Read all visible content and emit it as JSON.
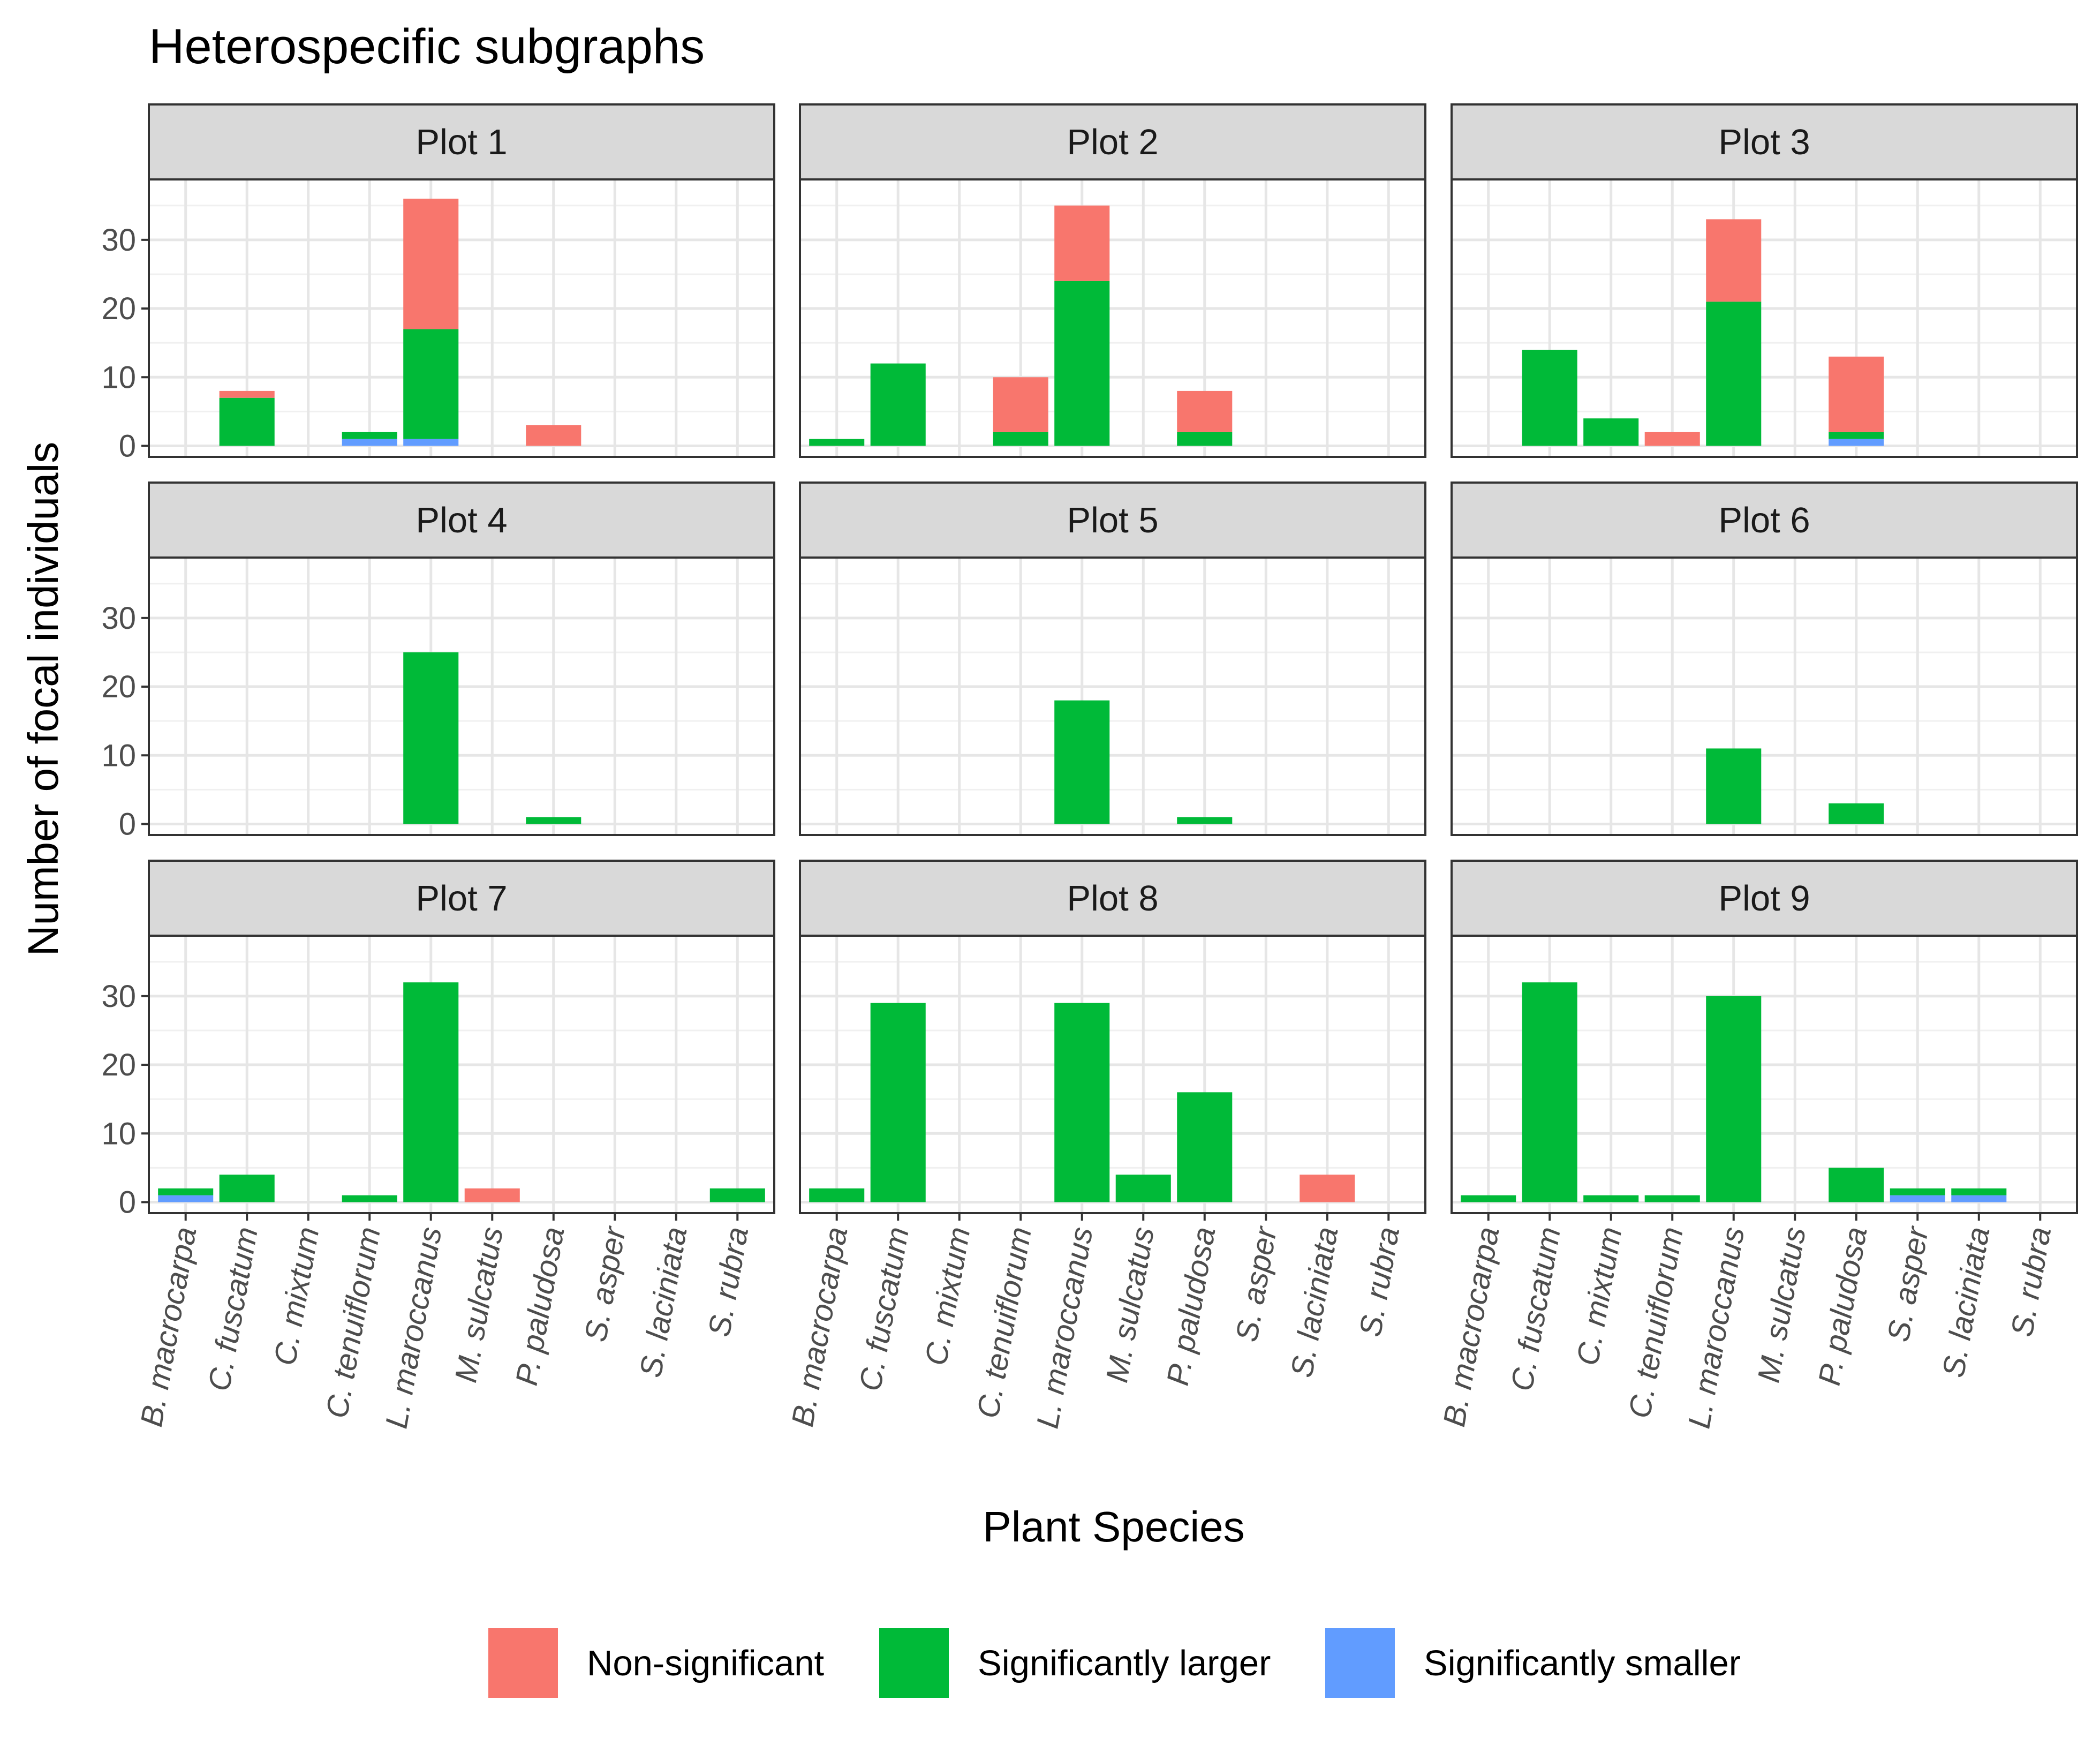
{
  "chart_data": {
    "type": "bar",
    "stacked": true,
    "title": "Heterospecific subgraphs",
    "xlabel": "Plant Species",
    "ylabel": "Number of focal individuals",
    "ylim": [
      0,
      36
    ],
    "yticks": [
      0,
      10,
      20,
      30
    ],
    "grid": true,
    "legend_position": "bottom",
    "categories": [
      "B. macrocarpa",
      "C. fuscatum",
      "C. mixtum",
      "C. tenuiflorum",
      "L. maroccanus",
      "M. sulcatus",
      "P. paludosa",
      "S. asper",
      "S. laciniata",
      "S. rubra"
    ],
    "series_names": [
      "Non-significant",
      "Significantly larger",
      "Significantly smaller"
    ],
    "colors": {
      "Non-significant": "#F8766D",
      "Significantly larger": "#00BA38",
      "Significantly smaller": "#619CFF"
    },
    "panels": [
      {
        "label": "Plot 1",
        "series": [
          {
            "name": "Non-significant",
            "values": [
              0,
              1,
              0,
              0,
              19,
              0,
              3,
              0,
              0,
              0
            ]
          },
          {
            "name": "Significantly larger",
            "values": [
              0,
              7,
              0,
              1,
              16,
              0,
              0,
              0,
              0,
              0
            ]
          },
          {
            "name": "Significantly smaller",
            "values": [
              0,
              0,
              0,
              1,
              1,
              0,
              0,
              0,
              0,
              0
            ]
          }
        ]
      },
      {
        "label": "Plot 2",
        "series": [
          {
            "name": "Non-significant",
            "values": [
              0,
              0,
              0,
              8,
              11,
              0,
              6,
              0,
              0,
              0
            ]
          },
          {
            "name": "Significantly larger",
            "values": [
              1,
              12,
              0,
              2,
              24,
              0,
              2,
              0,
              0,
              0
            ]
          },
          {
            "name": "Significantly smaller",
            "values": [
              0,
              0,
              0,
              0,
              0,
              0,
              0,
              0,
              0,
              0
            ]
          }
        ]
      },
      {
        "label": "Plot 3",
        "series": [
          {
            "name": "Non-significant",
            "values": [
              0,
              0,
              0,
              2,
              12,
              0,
              11,
              0,
              0,
              0
            ]
          },
          {
            "name": "Significantly larger",
            "values": [
              0,
              14,
              4,
              0,
              21,
              0,
              1,
              0,
              0,
              0
            ]
          },
          {
            "name": "Significantly smaller",
            "values": [
              0,
              0,
              0,
              0,
              0,
              0,
              1,
              0,
              0,
              0
            ]
          }
        ]
      },
      {
        "label": "Plot 4",
        "series": [
          {
            "name": "Non-significant",
            "values": [
              0,
              0,
              0,
              0,
              0,
              0,
              0,
              0,
              0,
              0
            ]
          },
          {
            "name": "Significantly larger",
            "values": [
              0,
              0,
              0,
              0,
              25,
              0,
              1,
              0,
              0,
              0
            ]
          },
          {
            "name": "Significantly smaller",
            "values": [
              0,
              0,
              0,
              0,
              0,
              0,
              0,
              0,
              0,
              0
            ]
          }
        ]
      },
      {
        "label": "Plot 5",
        "series": [
          {
            "name": "Non-significant",
            "values": [
              0,
              0,
              0,
              0,
              0,
              0,
              0,
              0,
              0,
              0
            ]
          },
          {
            "name": "Significantly larger",
            "values": [
              0,
              0,
              0,
              0,
              18,
              0,
              1,
              0,
              0,
              0
            ]
          },
          {
            "name": "Significantly smaller",
            "values": [
              0,
              0,
              0,
              0,
              0,
              0,
              0,
              0,
              0,
              0
            ]
          }
        ]
      },
      {
        "label": "Plot 6",
        "series": [
          {
            "name": "Non-significant",
            "values": [
              0,
              0,
              0,
              0,
              0,
              0,
              0,
              0,
              0,
              0
            ]
          },
          {
            "name": "Significantly larger",
            "values": [
              0,
              0,
              0,
              0,
              11,
              0,
              3,
              0,
              0,
              0
            ]
          },
          {
            "name": "Significantly smaller",
            "values": [
              0,
              0,
              0,
              0,
              0,
              0,
              0,
              0,
              0,
              0
            ]
          }
        ]
      },
      {
        "label": "Plot 7",
        "series": [
          {
            "name": "Non-significant",
            "values": [
              0,
              0,
              0,
              0,
              0,
              2,
              0,
              0,
              0,
              0
            ]
          },
          {
            "name": "Significantly larger",
            "values": [
              1,
              4,
              0,
              1,
              32,
              0,
              0,
              0,
              0,
              2
            ]
          },
          {
            "name": "Significantly smaller",
            "values": [
              1,
              0,
              0,
              0,
              0,
              0,
              0,
              0,
              0,
              0
            ]
          }
        ]
      },
      {
        "label": "Plot 8",
        "series": [
          {
            "name": "Non-significant",
            "values": [
              0,
              0,
              0,
              0,
              0,
              0,
              0,
              0,
              4,
              0
            ]
          },
          {
            "name": "Significantly larger",
            "values": [
              2,
              29,
              0,
              0,
              29,
              4,
              16,
              0,
              0,
              0
            ]
          },
          {
            "name": "Significantly smaller",
            "values": [
              0,
              0,
              0,
              0,
              0,
              0,
              0,
              0,
              0,
              0
            ]
          }
        ]
      },
      {
        "label": "Plot 9",
        "series": [
          {
            "name": "Non-significant",
            "values": [
              0,
              0,
              0,
              0,
              0,
              0,
              0,
              0,
              0,
              0
            ]
          },
          {
            "name": "Significantly larger",
            "values": [
              1,
              32,
              1,
              1,
              30,
              0,
              5,
              1,
              1,
              0
            ]
          },
          {
            "name": "Significantly smaller",
            "values": [
              0,
              0,
              0,
              0,
              0,
              0,
              0,
              1,
              1,
              0
            ]
          }
        ]
      }
    ]
  }
}
